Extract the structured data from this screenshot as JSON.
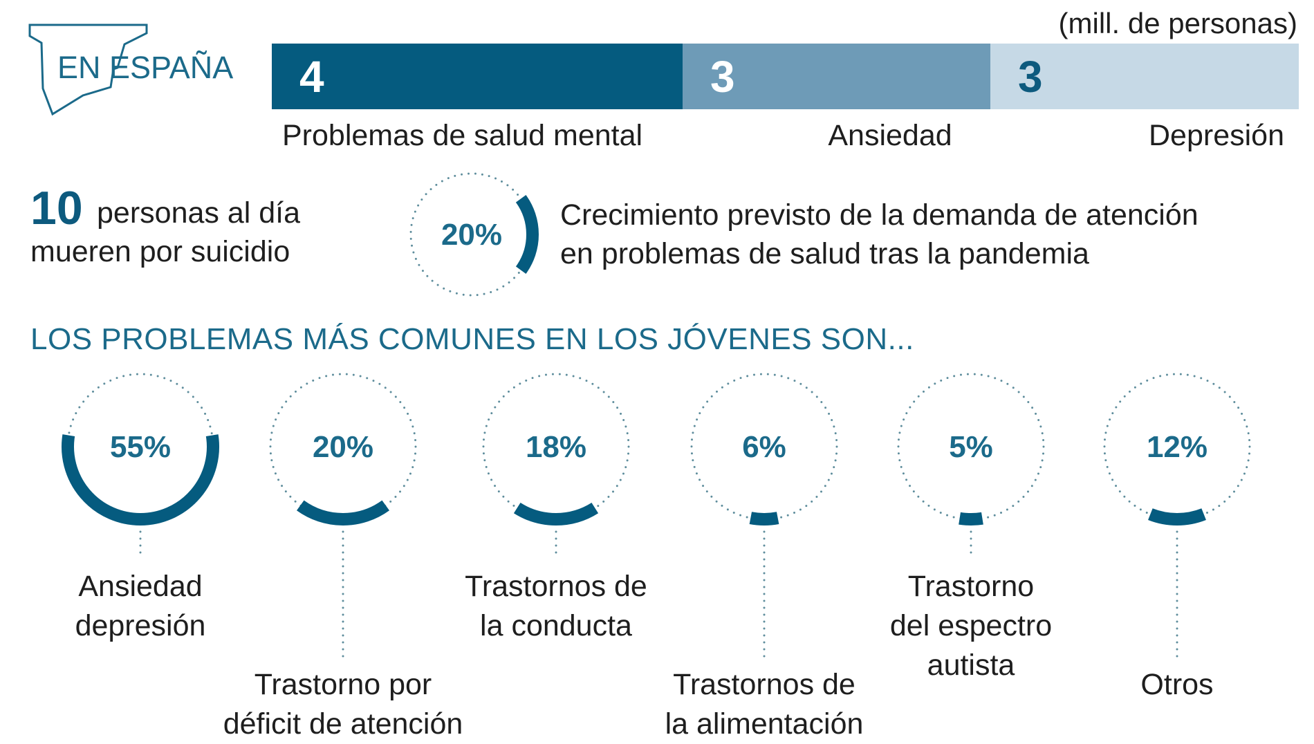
{
  "colors": {
    "dark": "#055b7f",
    "mid": "#6e9bb7",
    "light": "#c6d9e6",
    "accent": "#1b6a8a",
    "dots": "#5e8d9c"
  },
  "logo": {
    "text": "EN ESPAÑA"
  },
  "top_bar": {
    "unit": "(mill. de personas)",
    "segments": [
      {
        "value": "4",
        "label": "Problemas de salud mental"
      },
      {
        "value": "3",
        "label": "Ansiedad"
      },
      {
        "value": "3",
        "label": "Depresión"
      }
    ]
  },
  "suicide": {
    "number": "10",
    "line1": "personas al día",
    "line2": "mueren por suicidio"
  },
  "growth": {
    "value": "20%",
    "line1": "Crecimiento previsto de la demanda de atención",
    "line2": "en problemas  de salud tras la pandemia"
  },
  "heading": "LOS PROBLEMAS MÁS COMUNES EN LOS JÓVENES SON...",
  "chart_data": [
    {
      "type": "bar",
      "title": "EN ESPAÑA",
      "ylabel": "(mill. de personas)",
      "categories": [
        "Problemas de salud mental",
        "Ansiedad",
        "Depresión"
      ],
      "values": [
        4,
        3,
        3
      ]
    },
    {
      "type": "pie",
      "title": "Crecimiento previsto de la demanda de atención",
      "values": [
        20
      ]
    },
    {
      "type": "pie",
      "title": "LOS PROBLEMAS MÁS COMUNES EN LOS JÓVENES SON...",
      "categories": [
        "Ansiedad depresión",
        "Trastorno por déficit de atención",
        "Trastornos de la conducta",
        "Trastornos de la alimentación",
        "Trastorno del espectro autista",
        "Otros"
      ],
      "values": [
        55,
        20,
        18,
        6,
        5,
        12
      ]
    }
  ],
  "problems": [
    {
      "pct": "55%",
      "value": 55,
      "lines": [
        "Ansiedad",
        "depresión"
      ]
    },
    {
      "pct": "20%",
      "value": 20,
      "lines": [
        "Trastorno por",
        "déficit de atención"
      ]
    },
    {
      "pct": "18%",
      "value": 18,
      "lines": [
        "Trastornos de",
        "la conducta"
      ]
    },
    {
      "pct": "6%",
      "value": 6,
      "lines": [
        "Trastornos de",
        "la alimentación"
      ]
    },
    {
      "pct": "5%",
      "value": 5,
      "lines": [
        "Trastorno",
        "del espectro",
        "autista"
      ]
    },
    {
      "pct": "12%",
      "value": 12,
      "lines": [
        "Otros"
      ]
    }
  ]
}
